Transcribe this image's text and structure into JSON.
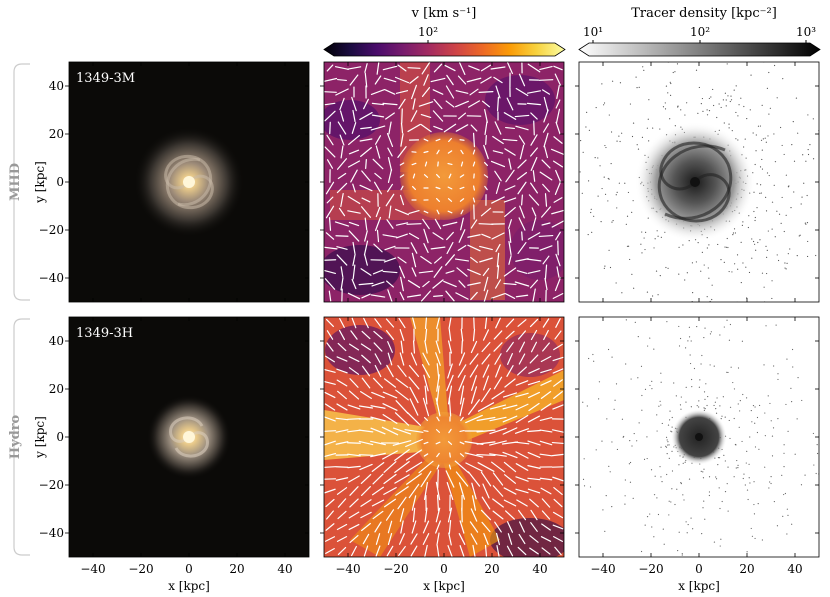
{
  "colorbars": {
    "velocity": {
      "label": "v [km s⁻¹]",
      "tick_label": "10²",
      "colormap": "inferno",
      "colors": [
        "#000004",
        "#1b0c41",
        "#4a0c6b",
        "#781c6d",
        "#a52c60",
        "#cf4446",
        "#ed6925",
        "#fb9b06",
        "#f7d13d",
        "#fcffa4"
      ]
    },
    "density": {
      "label": "Tracer density [kpc⁻²]",
      "tick_labels": [
        "10¹",
        "10²",
        "10³"
      ],
      "colors": [
        "#ffffff",
        "#000000"
      ]
    }
  },
  "rows": [
    {
      "name": "MHD",
      "simulation_label": "1349-3M",
      "disc_appearance": "large spiral",
      "velocity_field": "mostly tangled, moderate speeds"
    },
    {
      "name": "Hydro",
      "simulation_label": "1349-3H",
      "disc_appearance": "compact spiral",
      "velocity_field": "strong radial inflow streams"
    }
  ],
  "axes": {
    "xlabel": "x [kpc]",
    "ylabel": "y [kpc]",
    "xlim": [
      -50,
      50
    ],
    "ylim": [
      -50,
      50
    ],
    "x_ticks": [
      "−40",
      "−20",
      "0",
      "20",
      "40"
    ],
    "y_ticks": [
      "40",
      "20",
      "0",
      "−20",
      "−40"
    ]
  },
  "colors": {
    "bracket": "#cccccc",
    "row_label": "#999999",
    "stellar_bg": "#0b0a08"
  }
}
